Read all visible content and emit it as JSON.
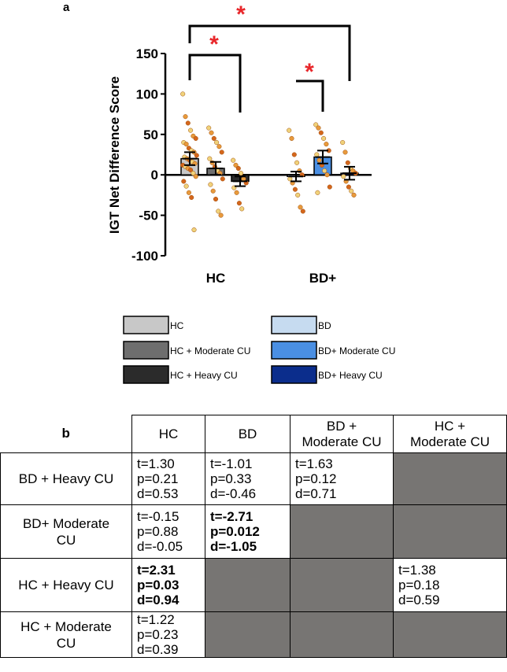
{
  "panel_a_label": "a",
  "panel_b_label": "b",
  "chart_data": {
    "type": "bar",
    "ylabel": "IGT Net Difference Score",
    "xlabel": "",
    "ylim": [
      -100,
      150
    ],
    "yticks": [
      -100,
      -50,
      0,
      50,
      100,
      150
    ],
    "ytick_labels": [
      "-100",
      "-50",
      "0",
      "50",
      "100",
      "150"
    ],
    "categories": [
      "HC",
      "BD+"
    ],
    "series": [
      {
        "name": "HC",
        "color": "#c8c8c8",
        "group": 0,
        "mean": 20,
        "sem": 8,
        "points": [
          100,
          72,
          64,
          55,
          48,
          45,
          40,
          38,
          33,
          30,
          28,
          24,
          22,
          20,
          18,
          16,
          14,
          12,
          10,
          8,
          6,
          2,
          -2,
          -8,
          -14,
          -22,
          -28,
          -68
        ]
      },
      {
        "name": "HC + Moderate CU",
        "color": "#6e6e6e",
        "group": 0,
        "mean": 8,
        "sem": 8,
        "points": [
          58,
          52,
          45,
          40,
          35,
          28,
          20,
          15,
          10,
          5,
          2,
          -5,
          -12,
          -20,
          -30,
          -45,
          -50
        ]
      },
      {
        "name": "HC + Heavy CU",
        "color": "#2b2b2b",
        "group": 0,
        "mean": -8,
        "sem": 6,
        "points": [
          18,
          12,
          8,
          2,
          -5,
          -10,
          -16,
          -22,
          -35,
          -42
        ]
      },
      {
        "name": "BD",
        "color": "#c6dbf0",
        "group": 1,
        "mean": -2,
        "sem": 6,
        "points": [
          55,
          45,
          25,
          15,
          5,
          0,
          -5,
          -10,
          -18,
          -25,
          -40,
          -45
        ]
      },
      {
        "name": "BD+ Moderate CU",
        "color": "#4a8fe3",
        "group": 1,
        "mean": 22,
        "sem": 8,
        "points": [
          62,
          58,
          52,
          45,
          38,
          30,
          25,
          18,
          12,
          5,
          0,
          -15,
          -22
        ]
      },
      {
        "name": "BD+ Heavy CU",
        "color": "#0b2d8c",
        "group": 1,
        "mean": 2,
        "sem": 8,
        "points": [
          40,
          28,
          15,
          8,
          5,
          2,
          -2,
          -8,
          -15,
          -20,
          -25
        ]
      }
    ],
    "significance": [
      {
        "from": 0,
        "to": 5,
        "label": "*"
      },
      {
        "from": 0,
        "to": 2,
        "label": "*"
      },
      {
        "from": 3,
        "to": 4,
        "label": "*"
      }
    ],
    "grid": false
  },
  "legend": {
    "placement": "bottom",
    "items": [
      {
        "label": "HC",
        "color": "#c8c8c8"
      },
      {
        "label": "HC + Moderate CU",
        "color": "#6e6e6e"
      },
      {
        "label": "HC + Heavy CU",
        "color": "#2b2b2b"
      },
      {
        "label": "BD",
        "color": "#c6dbf0"
      },
      {
        "label": "BD+ Moderate CU",
        "color": "#4a8fe3"
      },
      {
        "label": "BD+ Heavy CU",
        "color": "#0b2d8c"
      }
    ]
  },
  "table": {
    "columns": [
      "HC",
      "BD",
      "BD +\nModerate CU",
      "HC +\nModerate CU"
    ],
    "rows": [
      {
        "label": "BD + Heavy CU",
        "cells": [
          {
            "t": "t=1.30",
            "p": "p=0.21",
            "d": "d=0.53",
            "bold": false
          },
          {
            "t": "t=-1.01",
            "p": "p=0.33",
            "d": "d=-0.46",
            "bold": false
          },
          {
            "t": "t=1.63",
            "p": "p=0.12",
            "d": "d=0.71",
            "bold": false
          },
          null
        ]
      },
      {
        "label": "BD+ Moderate CU",
        "cells": [
          {
            "t": "t=-0.15",
            "p": "p=0.88",
            "d": "d=-0.05",
            "bold": false
          },
          {
            "t": "t=-2.71",
            "p": "p=0.012",
            "d": "d=-1.05",
            "bold": true
          },
          null,
          null
        ]
      },
      {
        "label": "HC + Heavy CU",
        "cells": [
          {
            "t": "t=2.31",
            "p": "p=0.03",
            "d": "d=0.94",
            "bold": true
          },
          null,
          null,
          {
            "t": "t=1.38",
            "p": "p=0.18",
            "d": "d=0.59",
            "bold": false
          }
        ]
      },
      {
        "label": "HC + Moderate CU",
        "cells": [
          {
            "t": "t=1.22",
            "p": "p=0.23",
            "d": "d=0.39",
            "bold": false
          },
          null,
          null,
          null
        ]
      }
    ]
  }
}
